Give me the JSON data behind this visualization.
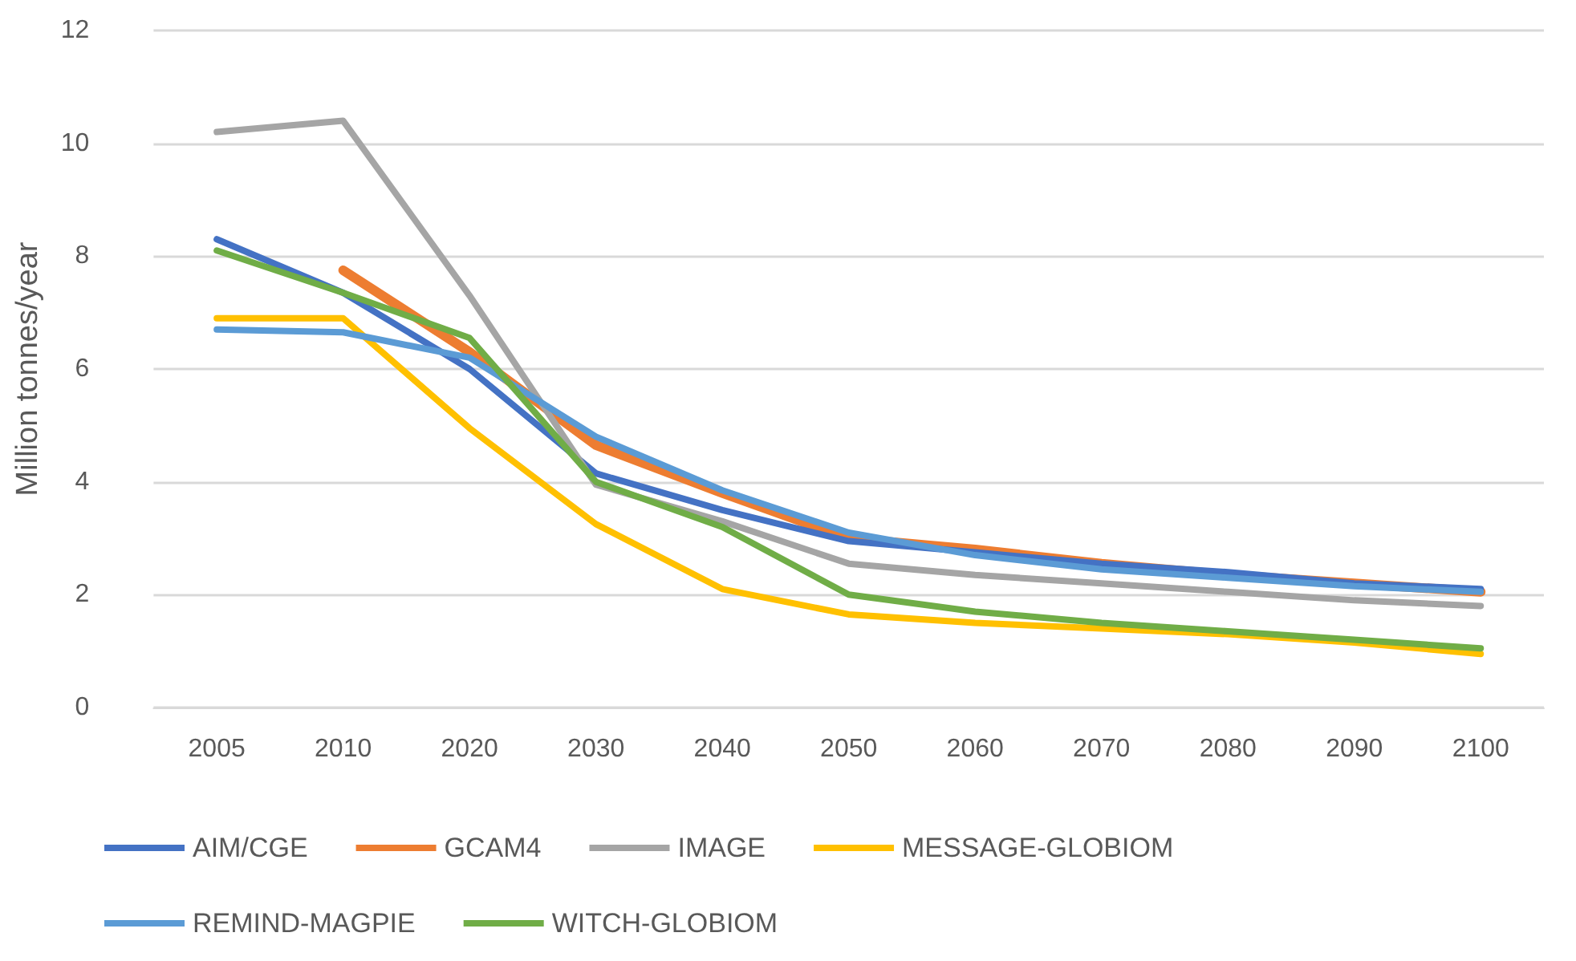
{
  "chart_data": {
    "type": "line",
    "ylabel": "Million tonnes/year",
    "categories": [
      "2005",
      "2010",
      "2020",
      "2030",
      "2040",
      "2050",
      "2060",
      "2070",
      "2080",
      "2090",
      "2100"
    ],
    "ylim": [
      0,
      12
    ],
    "yticks": [
      0,
      2,
      4,
      6,
      8,
      10,
      12
    ],
    "grid": "y",
    "legend": "bottom",
    "marker": "none",
    "line_style": "solid",
    "series": [
      {
        "name": "AIM/CGE",
        "color": "#4472c4",
        "values": [
          8.3,
          7.35,
          6.0,
          4.15,
          3.5,
          2.95,
          2.75,
          2.55,
          2.4,
          2.2,
          2.1
        ]
      },
      {
        "name": "GCAM4",
        "color": "#ed7d31",
        "values": [
          null,
          7.75,
          6.3,
          4.65,
          3.8,
          3.0,
          2.8,
          2.55,
          2.35,
          2.2,
          2.05
        ]
      },
      {
        "name": "IMAGE",
        "color": "#a5a5a5",
        "values": [
          10.2,
          10.4,
          7.3,
          3.95,
          3.3,
          2.55,
          2.35,
          2.2,
          2.05,
          1.9,
          1.8
        ]
      },
      {
        "name": "MESSAGE-GLOBIOM",
        "color": "#ffc000",
        "values": [
          6.9,
          6.9,
          4.95,
          3.25,
          2.1,
          1.65,
          1.5,
          1.4,
          1.3,
          1.15,
          0.95
        ]
      },
      {
        "name": "REMIND-MAGPIE",
        "color": "#5b9bd5",
        "values": [
          6.7,
          6.65,
          6.2,
          4.8,
          3.85,
          3.1,
          2.7,
          2.45,
          2.3,
          2.15,
          2.05
        ]
      },
      {
        "name": "WITCH-GLOBIOM",
        "color": "#70ad47",
        "values": [
          8.1,
          7.35,
          6.55,
          4.0,
          3.2,
          2.0,
          1.7,
          1.5,
          1.35,
          1.2,
          1.05
        ]
      }
    ]
  }
}
